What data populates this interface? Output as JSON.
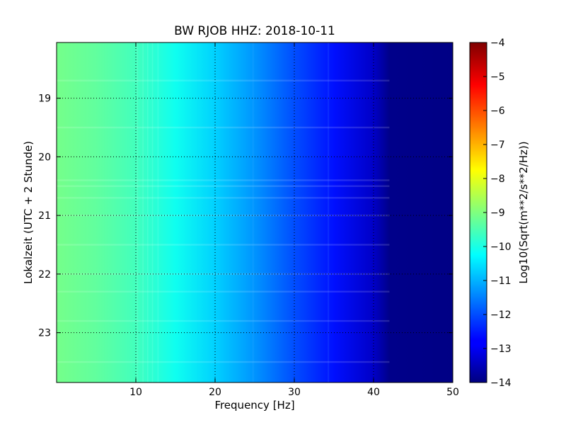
{
  "chart_data": {
    "type": "heatmap",
    "title": "BW RJOB HHZ: 2018-10-11",
    "xlabel": "Frequency [Hz]",
    "ylabel": "Lokalzeit (UTC + 2 Stunde)",
    "xlim": [
      0,
      50
    ],
    "ylim": [
      18.05,
      23.85
    ],
    "x_ticks": [
      10,
      20,
      30,
      40,
      50
    ],
    "y_ticks": [
      19,
      20,
      21,
      22,
      23
    ],
    "grid": true,
    "colorbar": {
      "label": "Log10(Sqrt(m**2/s**2/Hz))",
      "range": [
        -14,
        -4
      ],
      "ticks": [
        -4,
        -5,
        -6,
        -7,
        -8,
        -9,
        -10,
        -11,
        -12,
        -13,
        -14
      ],
      "colormap": "jet"
    },
    "level_profile": {
      "frequency_hz": [
        0,
        5,
        10,
        15,
        20,
        25,
        30,
        35,
        40,
        42,
        50
      ],
      "log_amplitude": [
        -9.1,
        -9.3,
        -9.6,
        -10.1,
        -10.7,
        -11.3,
        -12.0,
        -12.6,
        -13.3,
        -13.9,
        -13.95
      ]
    },
    "bright_time_bands": [
      18.7,
      19.5,
      20.4,
      20.5,
      20.7,
      21.0,
      21.5,
      22.0,
      22.3,
      22.8,
      23.5
    ]
  }
}
